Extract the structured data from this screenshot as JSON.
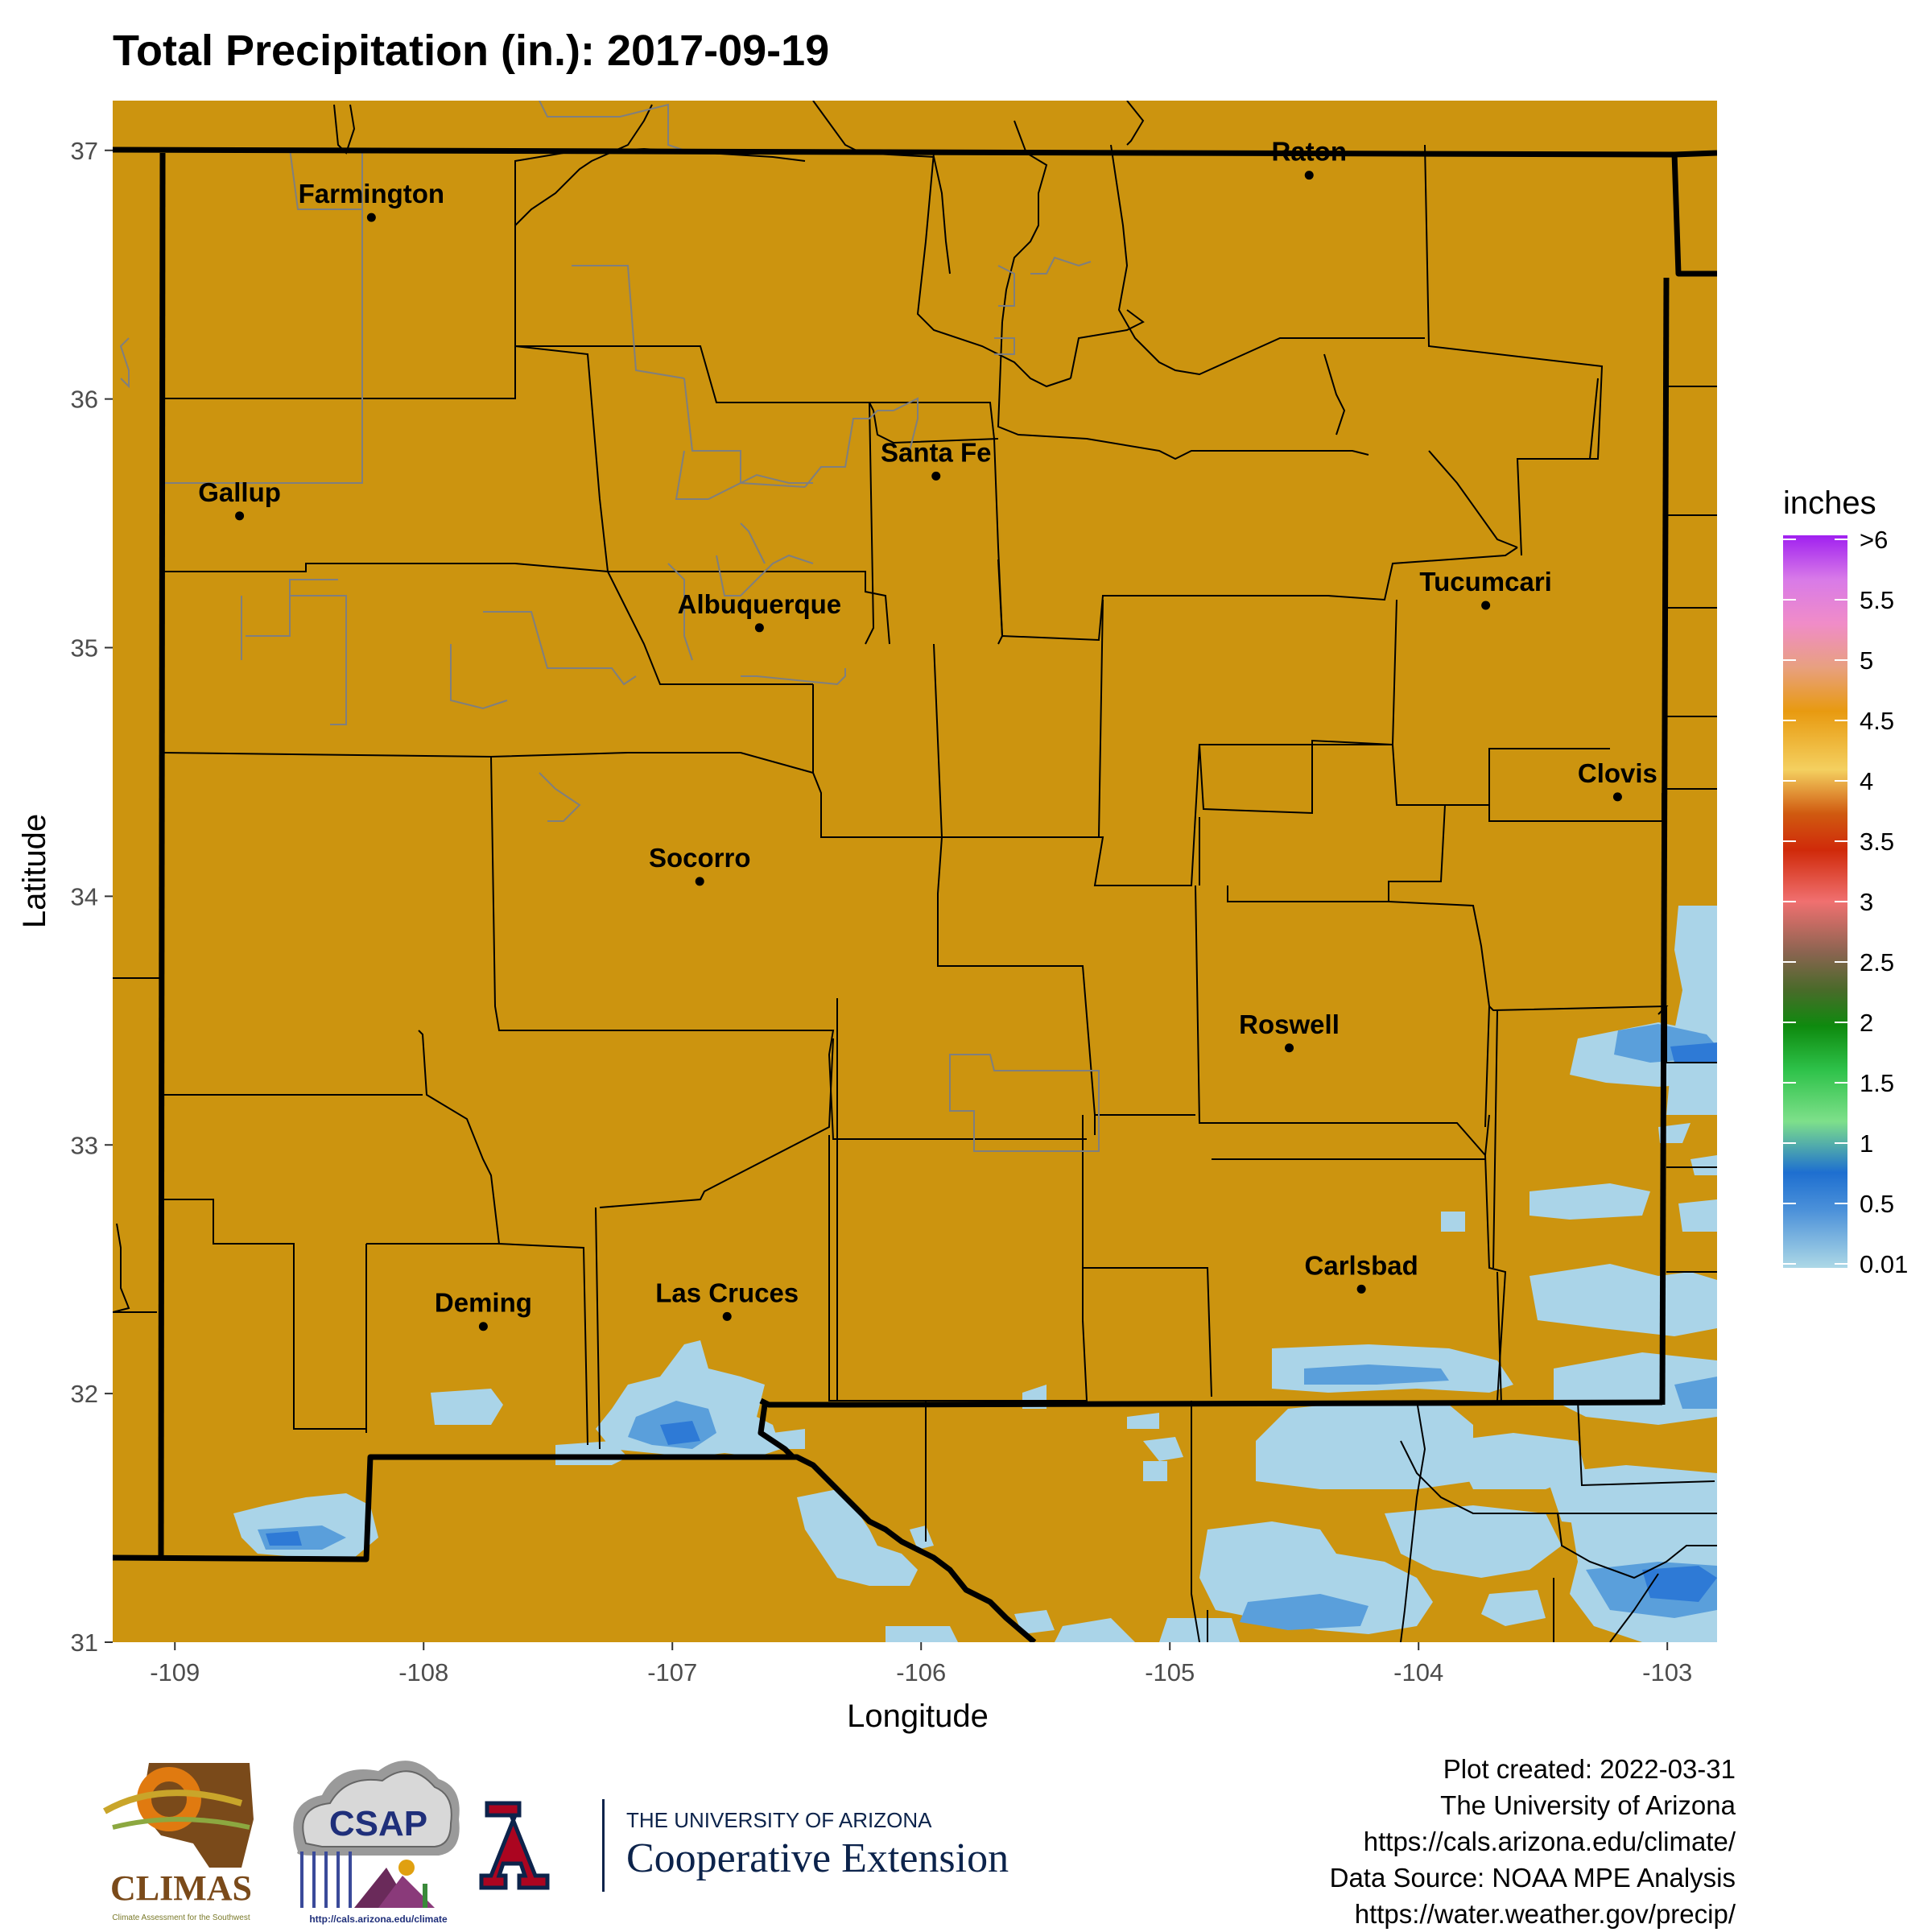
{
  "title": "Total Precipitation (in.): 2017-09-19",
  "axes": {
    "xlabel": "Longitude",
    "ylabel": "Latitude",
    "x_ticks": [
      "-109",
      "-108",
      "-107",
      "-106",
      "-105",
      "-104",
      "-103"
    ],
    "y_ticks": [
      "37",
      "36",
      "35",
      "34",
      "33",
      "32",
      "31"
    ],
    "xlim": [
      -109.25,
      -102.8
    ],
    "ylim": [
      31.0,
      37.2
    ]
  },
  "legend": {
    "title": "inches",
    "labels": [
      ">6",
      "5.5",
      "5",
      "4.5",
      "4",
      "3.5",
      "3",
      "2.5",
      "2",
      "1.5",
      "1",
      "0.5",
      "0.01"
    ]
  },
  "cities": [
    {
      "name": "Farmington",
      "lon": -108.21,
      "lat": 36.73
    },
    {
      "name": "Raton",
      "lon": -104.44,
      "lat": 36.9
    },
    {
      "name": "Gallup",
      "lon": -108.74,
      "lat": 35.53
    },
    {
      "name": "Santa Fe",
      "lon": -105.94,
      "lat": 35.69
    },
    {
      "name": "Albuquerque",
      "lon": -106.65,
      "lat": 35.08
    },
    {
      "name": "Tucumcari",
      "lon": -103.73,
      "lat": 35.17
    },
    {
      "name": "Clovis",
      "lon": -103.2,
      "lat": 34.4
    },
    {
      "name": "Socorro",
      "lon": -106.89,
      "lat": 34.06
    },
    {
      "name": "Roswell",
      "lon": -104.52,
      "lat": 33.39
    },
    {
      "name": "Carlsbad",
      "lon": -104.23,
      "lat": 32.42
    },
    {
      "name": "Deming",
      "lon": -107.76,
      "lat": 32.27
    },
    {
      "name": "Las Cruces",
      "lon": -106.78,
      "lat": 32.31
    }
  ],
  "colors": {
    "land": "#CC940F",
    "precip_light": "#AAD4E8",
    "precip_medium": "#5A9FDB",
    "precip_heavy": "#2E7AD6"
  },
  "credits": [
    "Plot created: 2022-03-31",
    "The University of Arizona",
    "https://cals.arizona.edu/climate/",
    "Data Source: NOAA MPE Analysis",
    "https://water.weather.gov/precip/"
  ],
  "logos": {
    "climas": "CLIMAS",
    "climas_sub": "Climate Assessment for the Southwest",
    "csap": "CSAP",
    "csap_url": "http://cals.arizona.edu/climate",
    "ua_line1": "THE UNIVERSITY OF ARIZONA",
    "ua_line2": "Cooperative Extension"
  }
}
